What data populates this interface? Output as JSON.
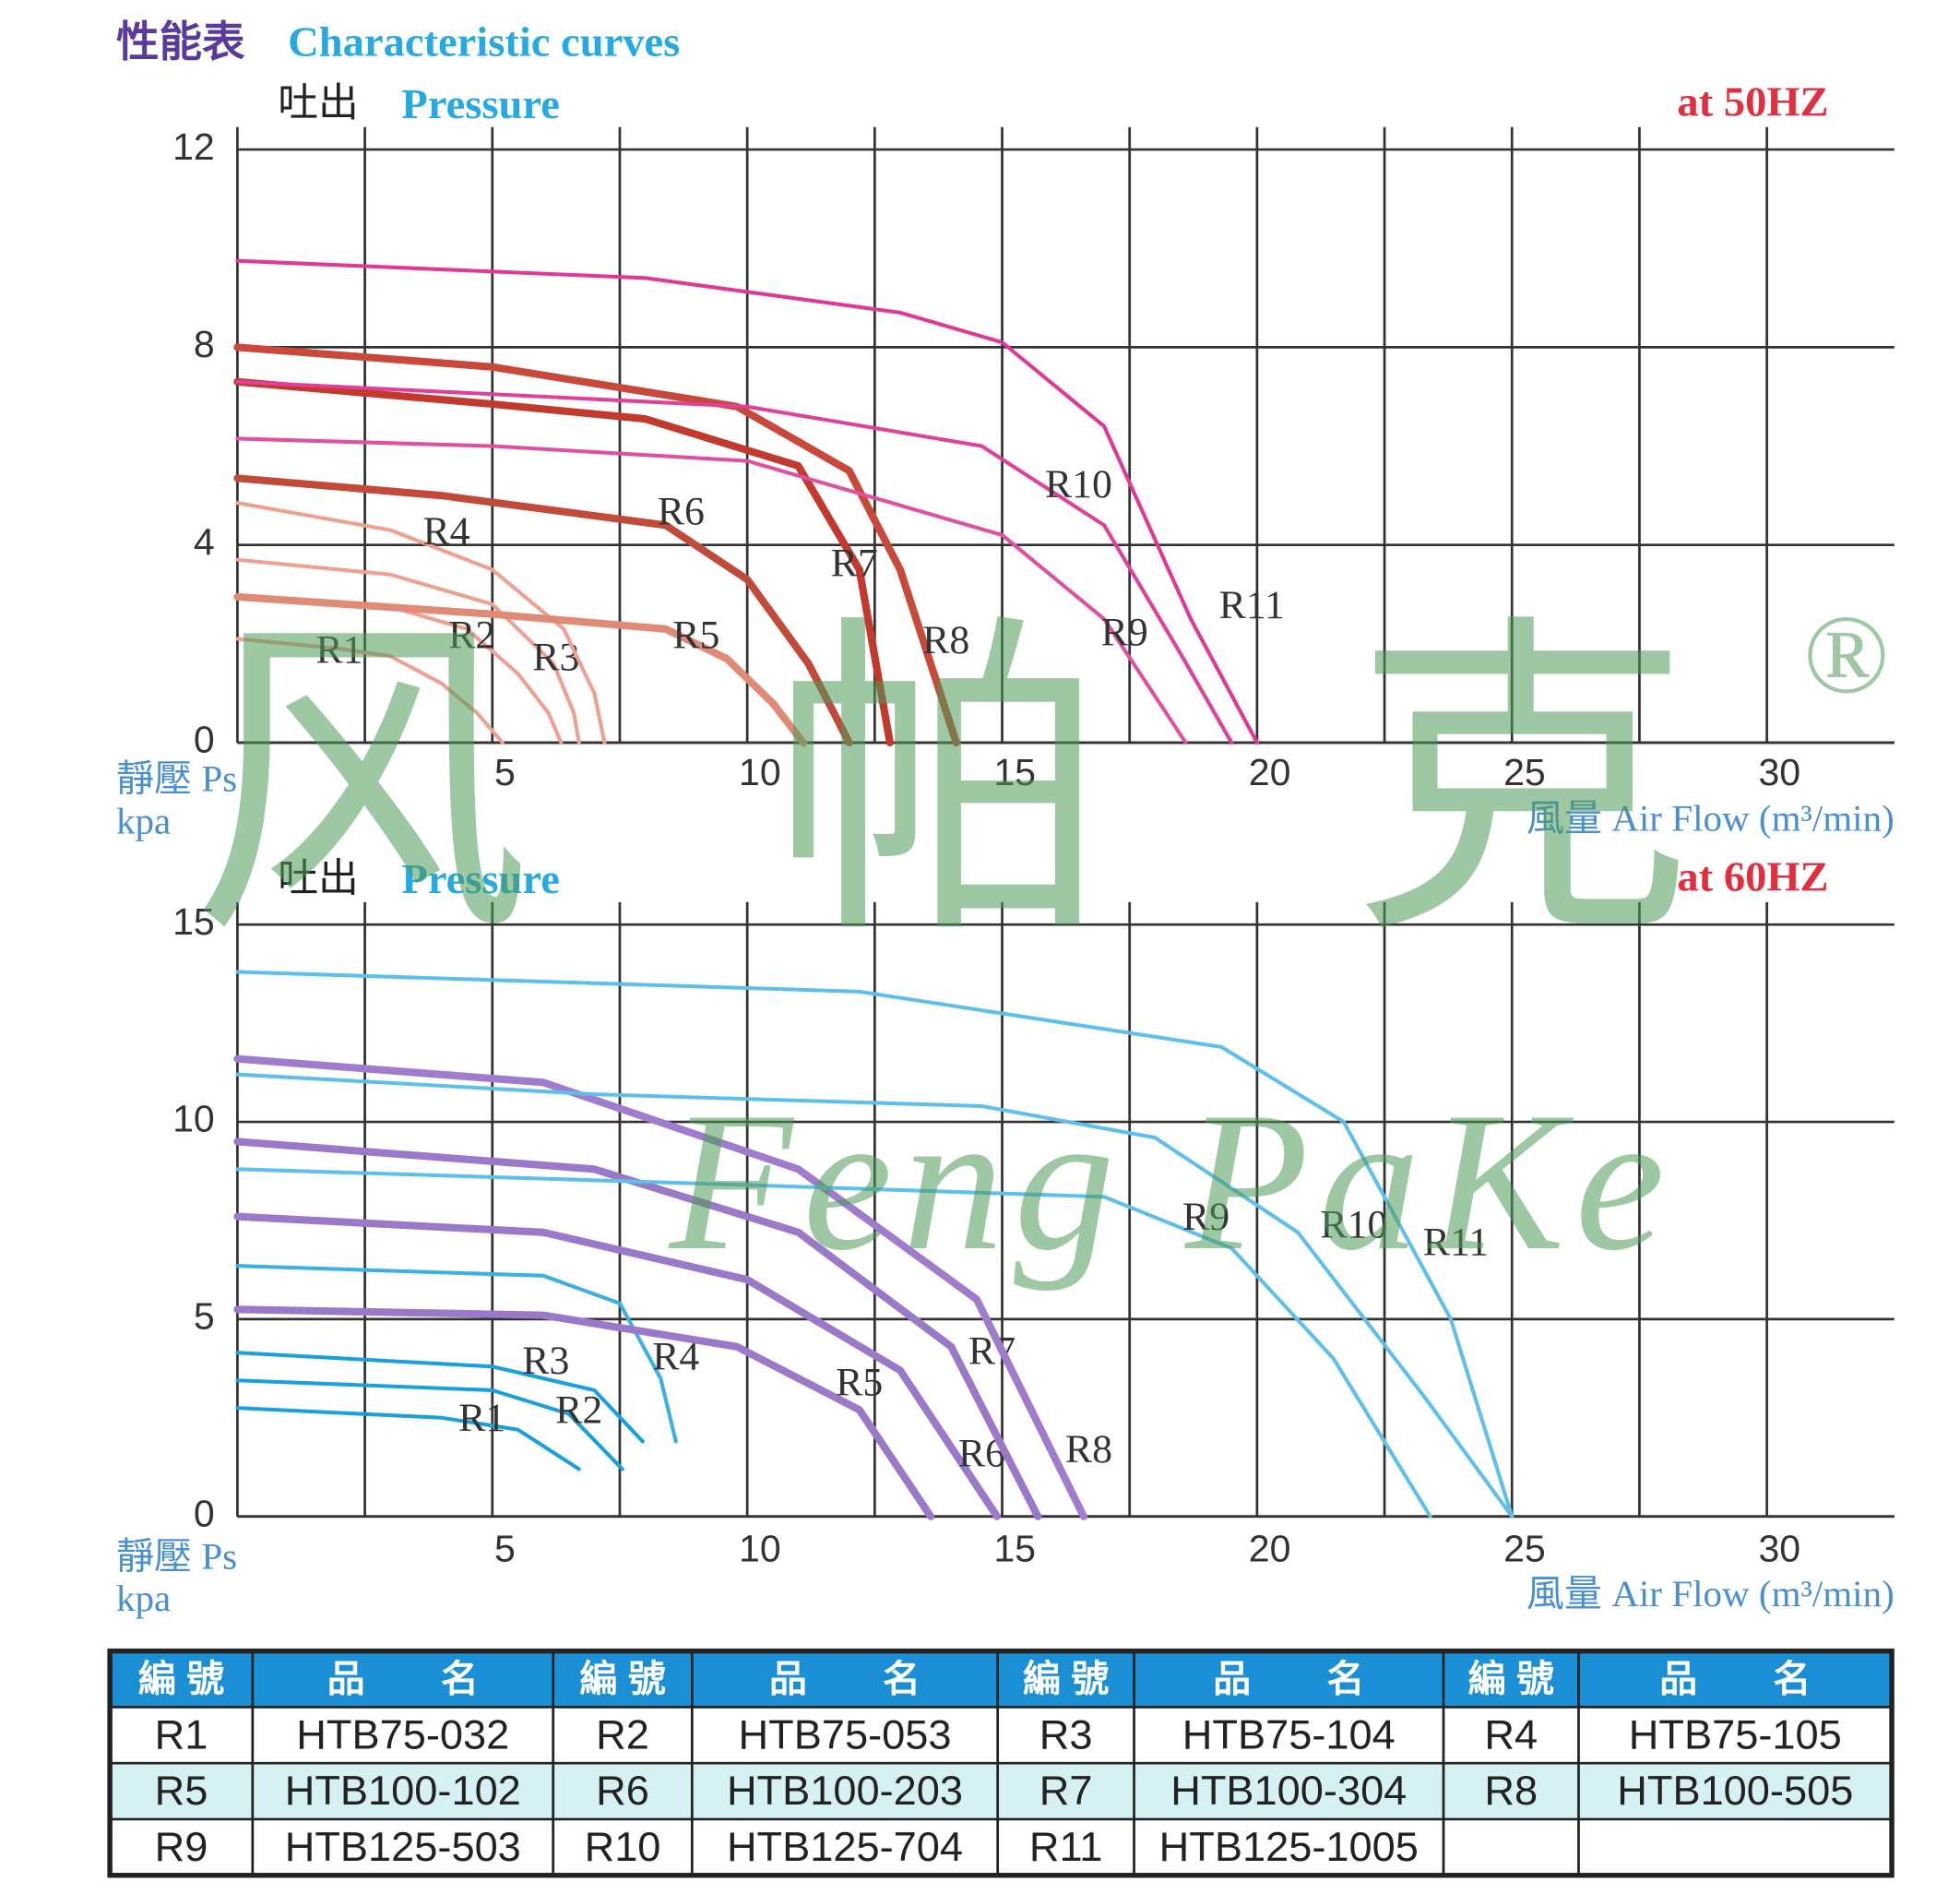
{
  "header": {
    "zh": "性能表",
    "en": "Characteristic curves"
  },
  "watermark": {
    "cn": "风帕克",
    "en": "Feng PaKe",
    "mark": "®"
  },
  "chart_data": [
    {
      "type": "line",
      "title_zh": "吐出",
      "title_en": "Pressure",
      "frequency": "at 50HZ",
      "ylabel": "靜壓 Ps",
      "yunit": "kpa",
      "xlabel": "風量  Air Flow (m³/min)",
      "xlim": [
        0,
        32.5
      ],
      "xticks": [
        5,
        10,
        15,
        20,
        25,
        30
      ],
      "x_minor_grid": [
        2.5,
        7.5,
        12.5,
        17.5,
        22.5,
        27.5
      ],
      "ylim": [
        0,
        12
      ],
      "yticks": [
        0,
        4,
        8,
        12
      ],
      "grid": true,
      "series": [
        {
          "name": "R1",
          "color": "#f0a090",
          "line_width": 3,
          "x": [
            0,
            2,
            3,
            4,
            4.7,
            5.2
          ],
          "values": [
            2.1,
            1.9,
            1.75,
            1.2,
            0.6,
            0
          ]
        },
        {
          "name": "R2",
          "color": "#f0a090",
          "line_width": 3,
          "x": [
            0,
            3,
            4.5,
            5.5,
            6.1,
            6.35
          ],
          "values": [
            2.95,
            2.75,
            2.3,
            1.4,
            0.6,
            0
          ]
        },
        {
          "name": "R3",
          "color": "#f0a090",
          "line_width": 3,
          "x": [
            0,
            3,
            5,
            6.2,
            6.6,
            6.7
          ],
          "values": [
            3.7,
            3.4,
            2.8,
            1.6,
            0.6,
            0
          ]
        },
        {
          "name": "R4",
          "color": "#f0a090",
          "line_width": 3,
          "x": [
            0,
            3,
            5,
            6.4,
            7,
            7.2
          ],
          "values": [
            4.85,
            4.3,
            3.5,
            2.3,
            1,
            0
          ]
        },
        {
          "name": "R5",
          "color": "#e08a78",
          "line_width": 6,
          "x": [
            0,
            5,
            8.4,
            9.6,
            10.5,
            11.1
          ],
          "values": [
            2.95,
            2.6,
            2.3,
            1.7,
            0.8,
            0
          ]
        },
        {
          "name": "R6",
          "color": "#c24a3a",
          "line_width": 6,
          "x": [
            0,
            4,
            8.4,
            10,
            11.2,
            12
          ],
          "values": [
            5.35,
            5.0,
            4.4,
            3.3,
            1.6,
            0
          ]
        },
        {
          "name": "R7",
          "color": "#c23a2e",
          "line_width": 6,
          "x": [
            0,
            5,
            8,
            11,
            12.2,
            12.8
          ],
          "values": [
            7.3,
            6.85,
            6.55,
            5.6,
            3.5,
            0
          ]
        },
        {
          "name": "R8",
          "color": "#c8483a",
          "line_width": 6,
          "x": [
            0,
            5,
            9.8,
            12,
            13,
            14.1
          ],
          "values": [
            8,
            7.6,
            6.8,
            5.5,
            3.5,
            0
          ]
        },
        {
          "name": "R9",
          "color": "#e0509e",
          "line_width": 3,
          "x": [
            0,
            5,
            10,
            15,
            17,
            18.6
          ],
          "values": [
            6.15,
            6.0,
            5.7,
            4.2,
            2.5,
            0
          ]
        },
        {
          "name": "R10",
          "color": "#e0409a",
          "line_width": 3,
          "x": [
            0,
            10,
            14.6,
            17,
            18.5,
            19.5
          ],
          "values": [
            7.3,
            6.8,
            6.0,
            4.4,
            1.8,
            0
          ]
        },
        {
          "name": "R11",
          "color": "#e03896",
          "line_width": 3,
          "x": [
            0,
            8,
            13,
            15,
            17,
            18.7,
            20
          ],
          "values": [
            9.75,
            9.4,
            8.7,
            8.1,
            6.4,
            2.5,
            0
          ]
        }
      ]
    },
    {
      "type": "line",
      "title_zh": "吐出",
      "title_en": "Pressure",
      "frequency": "at 60HZ",
      "ylabel": "靜壓 Ps",
      "yunit": "kpa",
      "xlabel": "風量  Air Flow (m³/min)",
      "xlim": [
        0,
        32.5
      ],
      "xticks": [
        5,
        10,
        15,
        20,
        25,
        30
      ],
      "x_minor_grid": [
        2.5,
        7.5,
        12.5,
        17.5,
        22.5,
        27.5
      ],
      "ylim": [
        0,
        15
      ],
      "yticks": [
        0,
        5,
        10,
        15
      ],
      "grid": true,
      "series": [
        {
          "name": "R1",
          "color": "#1aa0dc",
          "line_width": 3,
          "x": [
            0,
            4,
            5.5,
            6.7
          ],
          "values": [
            2.75,
            2.5,
            2.2,
            1.2
          ]
        },
        {
          "name": "R2",
          "color": "#1aa0dc",
          "line_width": 3,
          "x": [
            0,
            5,
            6.5,
            7.55
          ],
          "values": [
            3.45,
            3.2,
            2.6,
            1.2
          ]
        },
        {
          "name": "R3",
          "color": "#1aa0dc",
          "line_width": 3,
          "x": [
            0,
            5,
            7,
            7.95
          ],
          "values": [
            4.15,
            3.8,
            3.2,
            1.9
          ]
        },
        {
          "name": "R4",
          "color": "#3ab0e4",
          "line_width": 3,
          "x": [
            0,
            6,
            7.5,
            8.3,
            8.6
          ],
          "values": [
            6.35,
            6.1,
            5.4,
            3.5,
            1.9
          ]
        },
        {
          "name": "R5",
          "color": "#9a7ac8",
          "line_width": 6,
          "x": [
            0,
            6,
            9.8,
            12.2,
            13.6
          ],
          "values": [
            5.25,
            5.1,
            4.3,
            2.7,
            0
          ]
        },
        {
          "name": "R6",
          "color": "#9a7ac8",
          "line_width": 6,
          "x": [
            0,
            6,
            10,
            13,
            14.9
          ],
          "values": [
            7.6,
            7.2,
            6.0,
            3.7,
            0
          ]
        },
        {
          "name": "R7",
          "color": "#9a7ac8",
          "line_width": 6,
          "x": [
            0,
            7,
            11,
            14,
            15.7
          ],
          "values": [
            9.5,
            8.8,
            7.2,
            4.3,
            0
          ]
        },
        {
          "name": "R8",
          "color": "#a07ccc",
          "line_width": 6,
          "x": [
            0,
            6,
            11,
            14.5,
            16.6
          ],
          "values": [
            11.6,
            11.0,
            8.8,
            5.5,
            0
          ]
        },
        {
          "name": "R9",
          "color": "#5ec0ea",
          "line_width": 3,
          "x": [
            0,
            10,
            17,
            19.5,
            21.5,
            23.4
          ],
          "values": [
            8.8,
            8.4,
            8.1,
            6.8,
            4.0,
            0
          ]
        },
        {
          "name": "R10",
          "color": "#5ec0ea",
          "line_width": 3,
          "x": [
            0,
            7,
            14.6,
            18,
            20.8,
            23.3,
            25
          ],
          "values": [
            11.2,
            10.7,
            10.4,
            9.6,
            7.2,
            3.0,
            0
          ]
        },
        {
          "name": "R11",
          "color": "#5ec0ea",
          "line_width": 3,
          "x": [
            0,
            12.2,
            19.3,
            21.7,
            23.8,
            25
          ],
          "values": [
            13.8,
            13.3,
            11.9,
            10.0,
            5.0,
            0
          ]
        }
      ]
    }
  ],
  "table": {
    "columns": [
      "編 號",
      "品　　名",
      "編 號",
      "品　　名",
      "編 號",
      "品　　名",
      "編 號",
      "品　　名"
    ],
    "rows": [
      [
        "R1",
        "HTB75-032",
        "R2",
        "HTB75-053",
        "R3",
        "HTB75-104",
        "R4",
        "HTB75-105"
      ],
      [
        "R5",
        "HTB100-102",
        "R6",
        "HTB100-203",
        "R7",
        "HTB100-304",
        "R8",
        "HTB100-505"
      ],
      [
        "R9",
        "HTB125-503",
        "R10",
        "HTB125-704",
        "R11",
        "HTB125-1005"
      ]
    ]
  }
}
